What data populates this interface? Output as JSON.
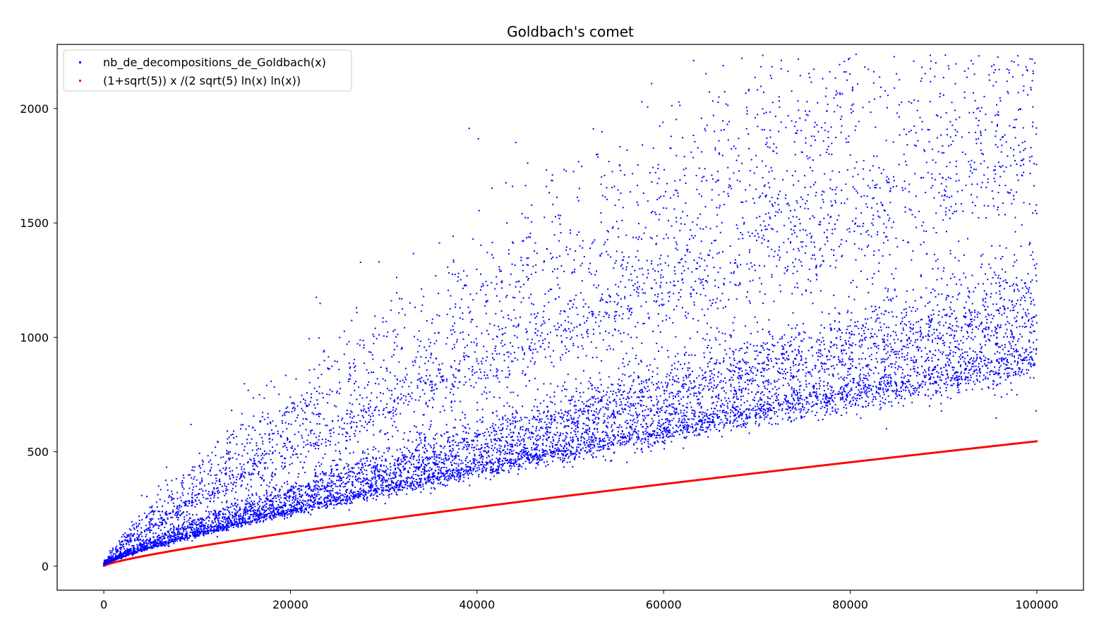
{
  "chart_data": {
    "type": "scatter",
    "title": "Goldbach's comet",
    "xlabel": "",
    "ylabel": "",
    "xlim": [
      -5000,
      105000
    ],
    "ylim": [
      -105,
      2280
    ],
    "xticks": [
      0,
      20000,
      40000,
      60000,
      80000,
      100000
    ],
    "xtick_labels": [
      "0",
      "20000",
      "40000",
      "60000",
      "80000",
      "100000"
    ],
    "yticks": [
      0,
      500,
      1000,
      1500,
      2000
    ],
    "ytick_labels": [
      "0",
      "500",
      "1000",
      "1500",
      "2000"
    ],
    "grid": false,
    "legend_position": "upper-left",
    "series": [
      {
        "name": "nb_de_decompositions_de_Goldbach(x)",
        "color": "#0000ff",
        "kind": "scatter",
        "x_range": [
          4,
          100000
        ],
        "x_step": 2,
        "bands": [
          {
            "coef": 0.01048,
            "multiplier": 1.0
          },
          {
            "coef": 0.01048,
            "multiplier": 1.2
          },
          {
            "coef": 0.01048,
            "multiplier": 1.333
          },
          {
            "coef": 0.01048,
            "multiplier": 2.0
          },
          {
            "coef": 0.01048,
            "multiplier": 2.667
          }
        ],
        "sample_points": [
          {
            "x": 10000,
            "y": 300
          },
          {
            "x": 30000,
            "y": 900
          },
          {
            "x": 60000,
            "y": 1565
          },
          {
            "x": 90000,
            "y": 2135
          },
          {
            "x": 99000,
            "y": 2165
          }
        ]
      },
      {
        "name": "(1+sqrt(5)) x /(2 sqrt(5) ln(x) ln(x))",
        "color": "#ff0000",
        "kind": "scatter",
        "formula": "(1+sqrt(5)) x /(2 sqrt(5) ln(x) ln(x))",
        "x_range": [
          4,
          100000
        ],
        "end_value": 545
      }
    ]
  }
}
